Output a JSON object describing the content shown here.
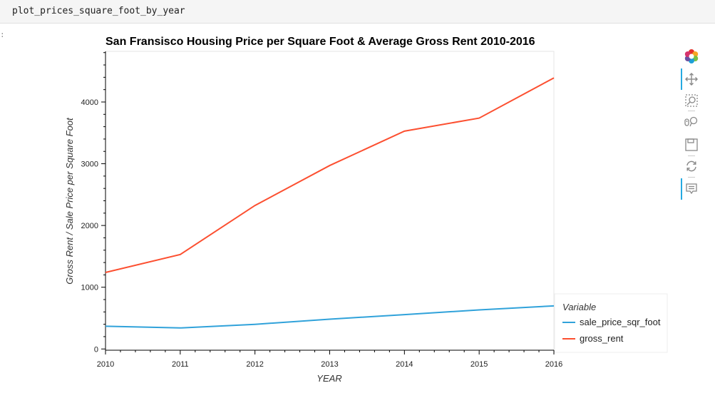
{
  "cell": {
    "code": "plot_prices_square_foot_by_year",
    "prompt_marker": ":"
  },
  "toolbar": {
    "tools": [
      "bokeh-logo-icon",
      "pan-icon",
      "box-zoom-icon",
      "wheel-zoom-icon",
      "save-icon",
      "reset-icon",
      "hover-icon"
    ],
    "active_color": "#26aae1"
  },
  "chart_data": {
    "type": "line",
    "title": "San Fransisco Housing Price per Square Foot & Average Gross Rent 2010-2016",
    "xlabel": "YEAR",
    "ylabel": "Gross Rent / Sale Price per Square Foot",
    "x": [
      2010,
      2011,
      2012,
      2013,
      2014,
      2015,
      2016
    ],
    "xticks": [
      "2010",
      "2011",
      "2012",
      "2013",
      "2014",
      "2015",
      "2016"
    ],
    "yticks": [
      "0",
      "1000",
      "2000",
      "3000",
      "4000"
    ],
    "xlim": [
      2010,
      2016
    ],
    "ylim": [
      -20,
      4820
    ],
    "grid": false,
    "legend": {
      "title": "Variable",
      "position": "right"
    },
    "series": [
      {
        "name": "sale_price_sqr_foot",
        "color": "#30a2da",
        "values": [
          369,
          341,
          399,
          483,
          556,
          633,
          698
        ]
      },
      {
        "name": "gross_rent",
        "color": "#fc4f30",
        "values": [
          1239,
          1530,
          2324,
          2971,
          3528,
          3739,
          4390
        ]
      }
    ]
  }
}
